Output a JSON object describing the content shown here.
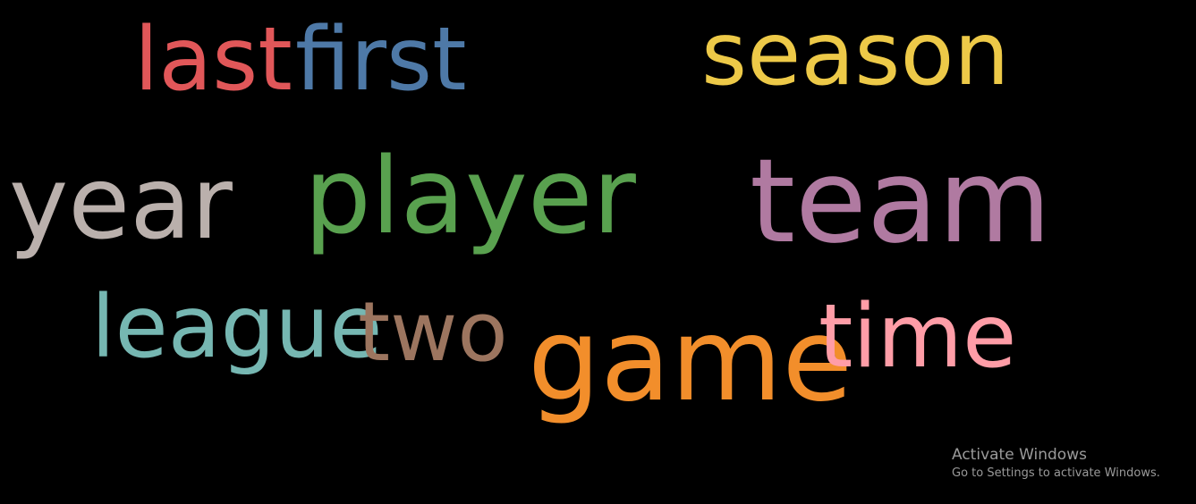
{
  "word_cloud": {
    "words": [
      {
        "id": "last",
        "text": "last",
        "color": "#e15759"
      },
      {
        "id": "first",
        "text": "first",
        "color": "#4e79a7"
      },
      {
        "id": "season",
        "text": "season",
        "color": "#edc948"
      },
      {
        "id": "year",
        "text": "year",
        "color": "#bab0ac"
      },
      {
        "id": "player",
        "text": "player",
        "color": "#59a14f"
      },
      {
        "id": "team",
        "text": "team",
        "color": "#b07aa1"
      },
      {
        "id": "league",
        "text": "league",
        "color": "#76b7b2"
      },
      {
        "id": "two",
        "text": "two",
        "color": "#9c755f"
      },
      {
        "id": "game",
        "text": "game",
        "color": "#f28e2b"
      },
      {
        "id": "time",
        "text": "time",
        "color": "#ff9da7"
      }
    ]
  },
  "watermark": {
    "title": "Activate Windows",
    "subtitle": "Go to Settings to activate Windows."
  }
}
